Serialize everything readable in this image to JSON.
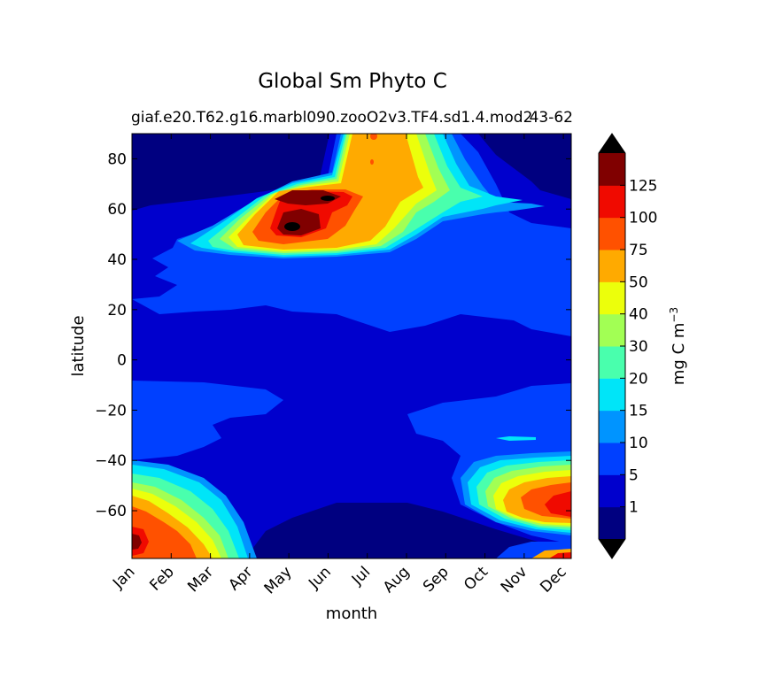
{
  "chart_data": {
    "type": "heatmap",
    "title": "Global Sm Phyto C",
    "subtitle_left": "giaf.e20.T62.g16.marbl090.zooO2v3.TF4.sd1.4.mod2",
    "subtitle_right": "43-62",
    "xlabel": "month",
    "ylabel": "latitude",
    "x_categories": [
      "Jan",
      "Feb",
      "Mar",
      "Apr",
      "May",
      "Jun",
      "Jul",
      "Aug",
      "Sep",
      "Oct",
      "Nov",
      "Dec"
    ],
    "yticks": [
      80,
      60,
      40,
      20,
      0,
      -20,
      -40,
      -60
    ],
    "ylim": [
      -79,
      90
    ],
    "colorbar": {
      "label": "mg C m",
      "label_exponent": "−3",
      "tick_labels": [
        "1",
        "5",
        "10",
        "15",
        "20",
        "30",
        "40",
        "50",
        "75",
        "100",
        "125"
      ],
      "levels": [
        0,
        1,
        5,
        10,
        15,
        20,
        30,
        40,
        50,
        75,
        100,
        125,
        150
      ],
      "extend": "both",
      "colors": [
        "#000080",
        "#0000cd",
        "#0040ff",
        "#0094ff",
        "#00e5f8",
        "#49ffad",
        "#a2ff54",
        "#ecff0b",
        "#ffaa00",
        "#ff5100",
        "#f00a00",
        "#800000"
      ],
      "under_color": "#000000",
      "over_color": "#000000"
    },
    "grid": false
  }
}
